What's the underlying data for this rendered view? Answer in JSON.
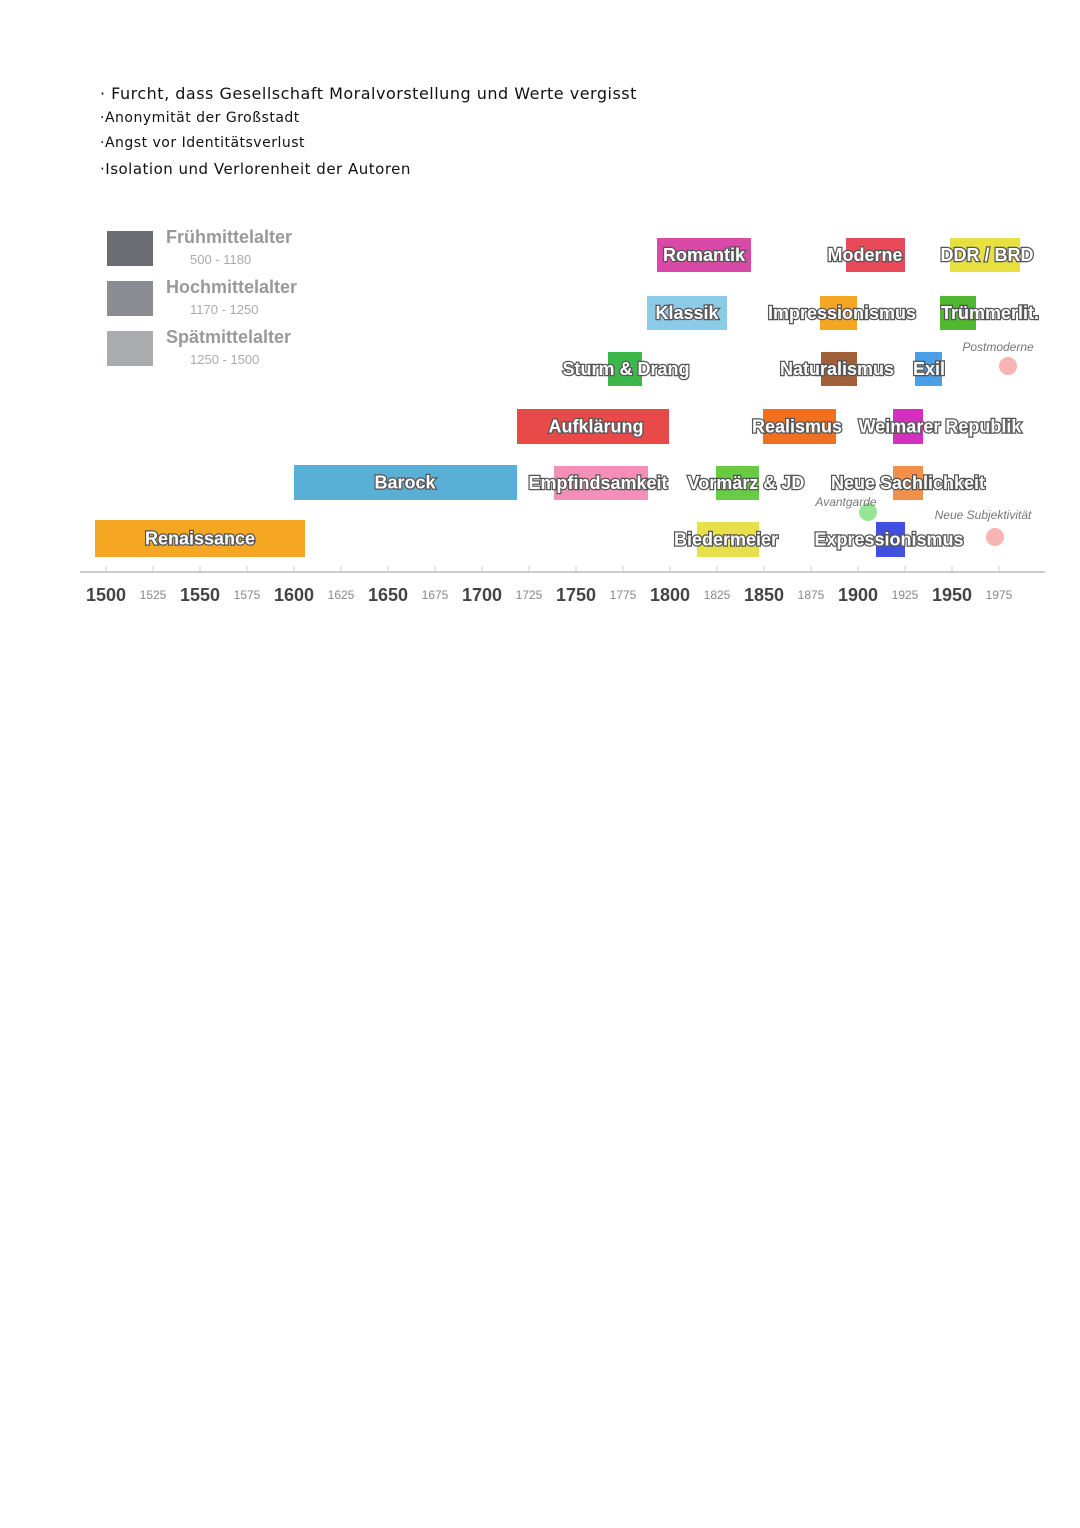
{
  "notes": [
    "· Furcht, dass Gesellschaft Moralvorstellung und Werte vergisst",
    "·Anonymität der Großstadt",
    "·Angst vor Identitätsverlust",
    "·Isolation und Verlorenheit der Autoren"
  ],
  "legend": [
    {
      "name": "Frühmittelalter",
      "range": "500 - 1180"
    },
    {
      "name": "Hochmittelalter",
      "range": "1170 - 1250"
    },
    {
      "name": "Spätmittelalter",
      "range": "1250 - 1500"
    }
  ],
  "epochs": [
    "Renaissance",
    "Barock",
    "Aufklärung",
    "Empfindsamkeit",
    "Sturm & Drang",
    "Klassik",
    "Romantik",
    "Vormärz & JD",
    "Biedermeier",
    "Realismus",
    "Naturalismus",
    "Impressionismus",
    "Moderne",
    "Weimarer Republik",
    "Neue Sachlichkeit",
    "Expressionismus",
    "Avantgarde",
    "Exil",
    "Trümmerlit.",
    "DDR / BRD",
    "Postmoderne",
    "Neue Subjektivität"
  ],
  "axis_labels": [
    "1500",
    "1525",
    "1550",
    "1575",
    "1600",
    "1625",
    "1650",
    "1675",
    "1700",
    "1725",
    "1750",
    "1775",
    "1800",
    "1825",
    "1850",
    "1875",
    "1900",
    "1925",
    "1950",
    "1975"
  ]
}
